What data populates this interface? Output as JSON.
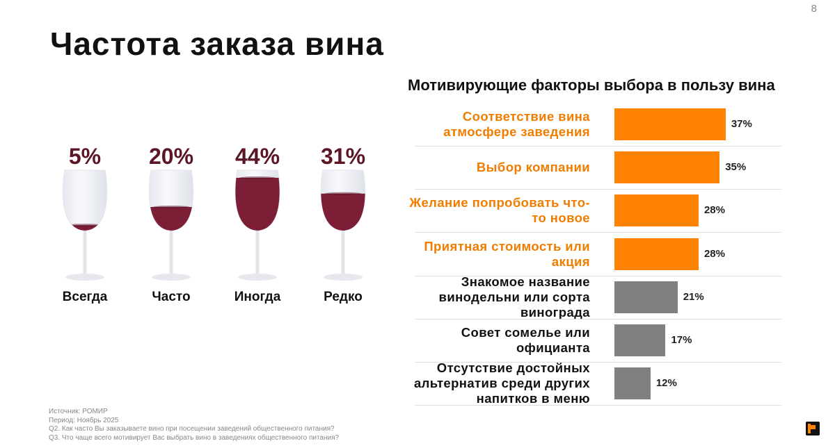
{
  "title": "Частота заказа вина",
  "page_number": "8",
  "chart_data": [
    {
      "type": "pictogram",
      "categories": [
        "Всегда",
        "Часто",
        "Иногда",
        "Редко"
      ],
      "values": [
        5,
        20,
        44,
        31
      ],
      "value_labels": [
        "5%",
        "20%",
        "44%",
        "31%"
      ],
      "color": "#7b1e36"
    },
    {
      "type": "bar",
      "orientation": "horizontal",
      "title": "Мотивирующие факторы выбора в пользу вина",
      "categories": [
        "Соответствие вина атмосфере заведения",
        "Выбор компании",
        "Желание попробовать что-то новое",
        "Приятная стоимость или акция",
        "Знакомое название винодельни или сорта винограда",
        "Совет сомелье или официанта",
        "Отсутствие достойных альтернатив среди других напитков в меню"
      ],
      "values": [
        37,
        35,
        28,
        28,
        21,
        17,
        12
      ],
      "value_labels": [
        "37%",
        "35%",
        "28%",
        "28%",
        "21%",
        "17%",
        "12%"
      ],
      "colors": [
        "#ff8200",
        "#ff8200",
        "#ff8200",
        "#ff8200",
        "#808080",
        "#808080",
        "#808080"
      ],
      "label_colors": [
        "#f07d00",
        "#f07d00",
        "#f07d00",
        "#f07d00",
        "#111111",
        "#111111",
        "#111111"
      ]
    }
  ],
  "notes": [
    "Источник: РОМИР",
    "Период: Ноябрь 2025",
    "Q2. Как часто Вы заказываете вино при посещении заведений общественного питания?",
    "Q3. Что чаще всего мотивирует Вас выбрать вино в заведениях общественного питания?"
  ]
}
